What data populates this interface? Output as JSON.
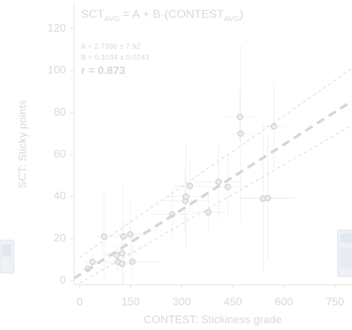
{
  "chart_data": {
    "type": "scatter",
    "title": [
      "SCT",
      "AVG",
      " = A + B·(CONTEST",
      "AVG",
      ")"
    ],
    "annotations": [
      "A = 2.7336 ± 7.92",
      "B = 0.1034 ± 0.0243",
      "r = 0.873"
    ],
    "x_label": "CONTEST: Stickiness grade",
    "y_label": "SCT: Sticky points",
    "xlim": [
      -16,
      800
    ],
    "ylim": [
      -2,
      132
    ],
    "xticks": [
      0,
      150,
      300,
      450,
      600,
      750
    ],
    "yticks": [
      0,
      20,
      40,
      60,
      80,
      100,
      120
    ],
    "series": [
      {
        "color": "#cfcfcf",
        "x": [
          24,
          38,
          72,
          109,
          113,
          125,
          129,
          125,
          149,
          155,
          272,
          310,
          312,
          324,
          378,
          408,
          435,
          471,
          473,
          539,
          553,
          571
        ],
        "y": [
          5.6,
          8.9,
          21,
          12,
          9,
          8,
          21,
          13,
          22,
          9,
          31.5,
          38,
          40,
          45,
          32.5,
          47,
          44.6,
          78,
          70,
          39,
          39.3,
          73.4
        ],
        "xerr": [
          20,
          30,
          30,
          35,
          60,
          40,
          25,
          50,
          40,
          80,
          60,
          70,
          60,
          50,
          50,
          70,
          60,
          40,
          30,
          70,
          80,
          30
        ],
        "yerr": [
          3,
          4,
          21,
          5,
          6,
          20,
          25,
          10,
          15,
          8,
          12,
          15,
          25,
          12,
          10,
          18,
          15,
          12,
          42,
          35,
          30,
          20
        ]
      }
    ],
    "fit": {
      "intercept": 2.7336,
      "slope": 0.1034,
      "color": "#d6d6d6"
    },
    "bands": [
      {
        "x": [
          0,
          800
        ],
        "y": [
          11,
          101
        ]
      },
      {
        "x": [
          0,
          800
        ],
        "y": [
          -1.3,
          74
        ]
      }
    ]
  }
}
